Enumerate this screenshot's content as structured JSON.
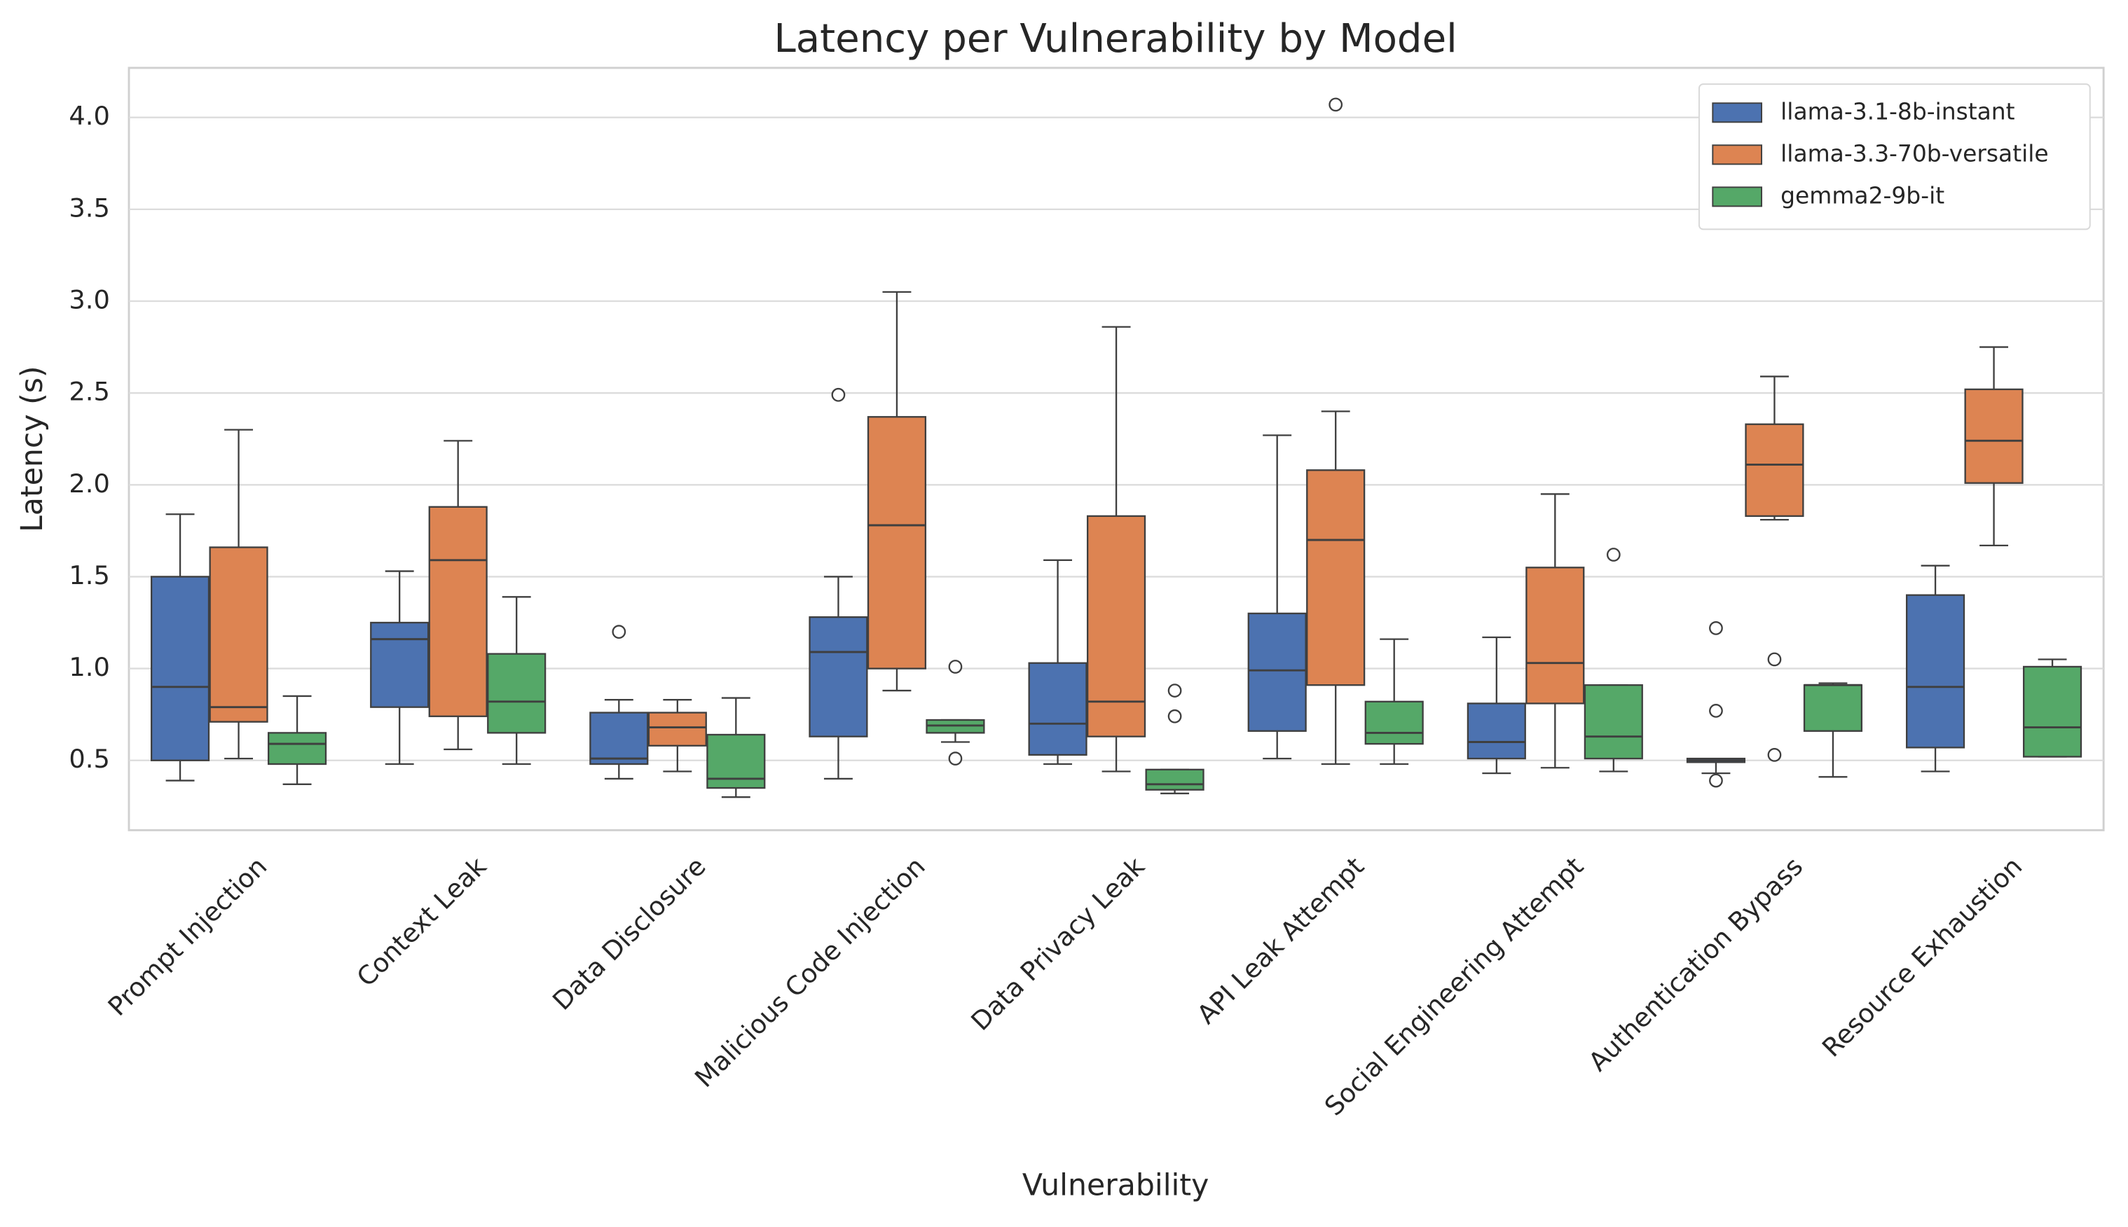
{
  "chart_data": {
    "type": "box",
    "title": "Latency per Vulnerability by Model",
    "x_label": "Vulnerability",
    "y_label": "Latency (s)",
    "categories": [
      "Prompt Injection",
      "Context Leak",
      "Data Disclosure",
      "Malicious Code Injection",
      "Data Privacy Leak",
      "API Leak Attempt",
      "Social Engineering Attempt",
      "Authentication Bypass",
      "Resource Exhaustion"
    ],
    "ylim": [
      0.12,
      4.27
    ],
    "yticks": [
      0.5,
      {
        "value": 1,
        "label": "1.0"
      },
      1.5,
      {
        "value": 2,
        "label": "2.0"
      },
      2.5,
      {
        "value": 3,
        "label": "3.0"
      },
      3.5,
      {
        "value": 4,
        "label": "4.0"
      }
    ],
    "grid": true,
    "legend": "upper right",
    "series": [
      {
        "name": "llama-3.1-8b-instant",
        "color": "#4c72b0",
        "whislo": [
          0.39,
          0.48,
          0.4,
          0.4,
          0.48,
          0.51,
          0.43,
          0.43,
          0.44
        ],
        "q1": [
          0.5,
          0.79,
          0.48,
          0.63,
          0.53,
          0.66,
          0.51,
          0.49,
          0.57
        ],
        "median": [
          0.9,
          1.16,
          0.51,
          1.09,
          0.7,
          0.99,
          0.6,
          0.5,
          0.9
        ],
        "q3": [
          1.5,
          1.25,
          0.76,
          1.28,
          1.03,
          1.3,
          0.81,
          0.51,
          1.4
        ],
        "whishi": [
          1.84,
          1.53,
          0.83,
          1.5,
          1.59,
          2.27,
          1.17,
          0.51,
          1.56
        ],
        "outliers": [
          [],
          [],
          [
            1.2
          ],
          [
            2.49
          ],
          [],
          [],
          [],
          [
            1.22,
            0.77,
            0.39
          ],
          []
        ]
      },
      {
        "name": "llama-3.3-70b-versatile",
        "color": "#dd8452",
        "whislo": [
          0.51,
          0.56,
          0.44,
          0.88,
          0.44,
          0.48,
          0.46,
          1.81,
          1.67
        ],
        "q1": [
          0.71,
          0.74,
          0.58,
          1.0,
          0.63,
          0.91,
          0.81,
          1.83,
          2.01
        ],
        "median": [
          0.79,
          1.59,
          0.68,
          1.78,
          0.82,
          1.7,
          1.03,
          2.11,
          2.24
        ],
        "q3": [
          1.66,
          1.88,
          0.76,
          2.37,
          1.83,
          2.08,
          1.55,
          2.33,
          2.52
        ],
        "whishi": [
          2.3,
          2.24,
          0.83,
          3.05,
          2.86,
          2.4,
          1.95,
          2.59,
          2.75
        ],
        "outliers": [
          [],
          [],
          [],
          [],
          [],
          [
            4.07
          ],
          [],
          [
            1.05,
            0.53
          ],
          []
        ]
      },
      {
        "name": "gemma2-9b-it",
        "color": "#55a868",
        "whislo": [
          0.37,
          0.48,
          0.3,
          0.6,
          0.32,
          0.48,
          0.44,
          0.41,
          0.52
        ],
        "q1": [
          0.48,
          0.65,
          0.35,
          0.65,
          0.34,
          0.59,
          0.51,
          0.66,
          0.52
        ],
        "median": [
          0.59,
          0.82,
          0.4,
          0.69,
          0.37,
          0.65,
          0.63,
          0.91,
          0.68
        ],
        "q3": [
          0.65,
          1.08,
          0.64,
          0.72,
          0.45,
          0.82,
          0.91,
          0.91,
          1.01
        ],
        "whishi": [
          0.85,
          1.39,
          0.84,
          0.72,
          0.45,
          1.16,
          0.91,
          0.92,
          1.05
        ],
        "outliers": [
          [],
          [],
          [],
          [
            1.01,
            0.51
          ],
          [
            0.88,
            0.74
          ],
          [],
          [
            1.62
          ],
          [],
          []
        ]
      }
    ]
  }
}
